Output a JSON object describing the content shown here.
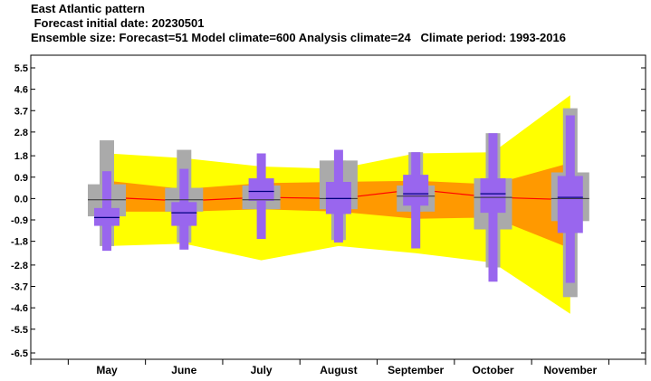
{
  "header": {
    "title": "East Atlantic pattern",
    "initial_date": " Forecast initial date: 20230501",
    "ensemble": "Ensemble size: Forecast=51 Model climate=600 Analysis climate=24   Climate period: 1993-2016"
  },
  "colors": {
    "clim_outer": "#ffff00",
    "clim_inner": "#ff9900",
    "analysis_box": "#aaaaaa",
    "forecast_box": "#9966ee",
    "clim_median": "#ff0000",
    "median": "#000080"
  },
  "chart_data": {
    "type": "box",
    "categories": [
      "May",
      "June",
      "July",
      "August",
      "September",
      "October",
      "November"
    ],
    "yticks": [
      "5.5",
      "4.6",
      "3.7",
      "2.8",
      "1.8",
      "0.9",
      "0.0",
      "-0.9",
      "-1.8",
      "-2.8",
      "-3.7",
      "-4.6",
      "-5.5",
      "-6.5"
    ],
    "ylim": [
      -6.5,
      5.5
    ],
    "model_climate": {
      "outer": [
        [
          -2.0,
          1.9
        ],
        [
          -1.9,
          1.7
        ],
        [
          -2.6,
          1.35
        ],
        [
          -2.0,
          1.25
        ],
        [
          -2.3,
          1.9
        ],
        [
          -2.7,
          1.95
        ],
        [
          -4.85,
          4.35
        ]
      ],
      "inner": [
        [
          -0.55,
          0.75
        ],
        [
          -0.55,
          0.4
        ],
        [
          -0.45,
          0.65
        ],
        [
          -0.55,
          0.7
        ],
        [
          -0.85,
          0.75
        ],
        [
          -0.8,
          0.6
        ],
        [
          -2.1,
          1.5
        ]
      ],
      "median": [
        0.05,
        -0.1,
        0.05,
        0.0,
        0.38,
        0.05,
        -0.05
      ]
    },
    "analysis": [
      {
        "min": -2.0,
        "q1": -0.75,
        "median": -0.05,
        "q3": 0.6,
        "max": 2.45
      },
      {
        "min": -1.85,
        "q1": -0.55,
        "median": -0.05,
        "q3": 0.45,
        "max": 2.05
      },
      {
        "min": -0.45,
        "q1": -0.45,
        "median": -0.05,
        "q3": 0.55,
        "max": 0.55
      },
      {
        "min": -1.75,
        "q1": -0.45,
        "median": 0.0,
        "q3": 1.6,
        "max": 1.6
      },
      {
        "min": -0.55,
        "q1": -0.55,
        "median": 0.1,
        "q3": 0.55,
        "max": 1.95
      },
      {
        "min": -2.9,
        "q1": -1.3,
        "median": 0.05,
        "q3": 0.85,
        "max": 2.75
      },
      {
        "min": -4.15,
        "q1": -0.95,
        "median": 0.0,
        "q3": 1.1,
        "max": 3.8
      }
    ],
    "forecast": [
      {
        "min": -2.2,
        "q1": -1.15,
        "median": -0.8,
        "q3": -0.4,
        "max": 1.15
      },
      {
        "min": -2.15,
        "q1": -1.15,
        "median": -0.6,
        "q3": -0.15,
        "max": 1.25
      },
      {
        "min": -1.7,
        "q1": -0.1,
        "median": 0.3,
        "q3": 0.85,
        "max": 1.9
      },
      {
        "min": -1.85,
        "q1": -0.65,
        "median": 0.0,
        "q3": 0.7,
        "max": 2.05
      },
      {
        "min": -2.1,
        "q1": -0.3,
        "median": 0.2,
        "q3": 1.0,
        "max": 1.95
      },
      {
        "min": -3.5,
        "q1": -0.6,
        "median": 0.2,
        "q3": 0.85,
        "max": 2.75
      },
      {
        "min": -3.55,
        "q1": -1.45,
        "median": 0.05,
        "q3": 0.95,
        "max": 3.5
      }
    ]
  }
}
